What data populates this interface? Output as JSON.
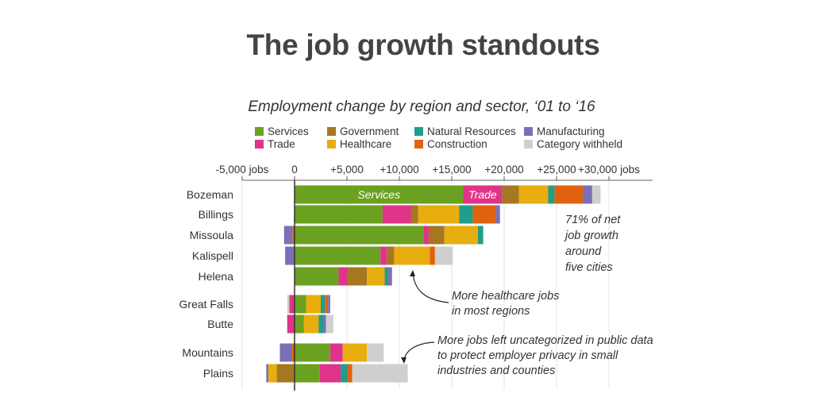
{
  "title": "The job growth standouts",
  "chart_data": {
    "type": "bar",
    "orientation": "horizontal",
    "stacked": true,
    "title": "Employment change by region and sector, ‘01 to ‘16",
    "xlim": [
      -5000,
      33000
    ],
    "ticks": [
      {
        "value": -5000,
        "label": "-5,000 jobs"
      },
      {
        "value": 0,
        "label": "0"
      },
      {
        "value": 5000,
        "label": "+5,000"
      },
      {
        "value": 10000,
        "label": "+10,000"
      },
      {
        "value": 15000,
        "label": "+15,000"
      },
      {
        "value": 20000,
        "label": "+20,000"
      },
      {
        "value": 25000,
        "label": "+25,000"
      },
      {
        "value": 30000,
        "label": "+30,000 jobs"
      }
    ],
    "grid": true,
    "legend_position": "top",
    "sectors": [
      {
        "key": "services",
        "name": "Services",
        "color": "#6aa121"
      },
      {
        "key": "trade",
        "name": "Trade",
        "color": "#e0338a"
      },
      {
        "key": "government",
        "name": "Government",
        "color": "#a57720"
      },
      {
        "key": "healthcare",
        "name": "Healthcare",
        "color": "#e8ad0e"
      },
      {
        "key": "natural",
        "name": "Natural Resources",
        "color": "#1f9e89"
      },
      {
        "key": "construction",
        "name": "Construction",
        "color": "#e0620e"
      },
      {
        "key": "manufacturing",
        "name": "Manufacturing",
        "color": "#7b70b7"
      },
      {
        "key": "withheld",
        "name": "Category withheld",
        "color": "#cfcfcf"
      }
    ],
    "categories": [
      "Bozeman",
      "Billings",
      "Missoula",
      "Kalispell",
      "Helena",
      "Great Falls",
      "Butte",
      "Mountains",
      "Plains"
    ],
    "rows": [
      {
        "region": "Bozeman",
        "positive": {
          "services": 16100,
          "trade": 3700,
          "government": 1600,
          "healthcare": 2800,
          "natural": 600,
          "construction": 2700,
          "manufacturing": 900,
          "withheld": 800
        },
        "negative": {},
        "segment_labels": {
          "services": "Services",
          "trade": "Trade"
        }
      },
      {
        "region": "Billings",
        "positive": {
          "services": 8400,
          "trade": 2700,
          "government": 700,
          "healthcare": 3900,
          "natural": 1300,
          "construction": 2200,
          "manufacturing": 400
        },
        "negative": {}
      },
      {
        "region": "Missoula",
        "positive": {
          "services": 12300,
          "trade": 500,
          "government": 1500,
          "healthcare": 3200,
          "natural": 500
        },
        "negative": {
          "construction": -200,
          "manufacturing": -800
        }
      },
      {
        "region": "Kalispell",
        "positive": {
          "services": 8200,
          "trade": 600,
          "government": 700,
          "healthcare": 3400,
          "construction": 500,
          "withheld": 1700
        },
        "negative": {
          "manufacturing": -900
        }
      },
      {
        "region": "Helena",
        "positive": {
          "services": 4200,
          "trade": 800,
          "government": 1900,
          "healthcare": 1700,
          "natural": 300,
          "manufacturing": 400
        },
        "negative": {}
      },
      {
        "region": "Great Falls",
        "positive": {
          "services": 1100,
          "healthcare": 1400,
          "natural": 400,
          "construction": 300,
          "manufacturing": 200
        },
        "negative": {
          "trade": -500,
          "withheld": -200
        }
      },
      {
        "region": "Butte",
        "positive": {
          "services": 900,
          "healthcare": 1400,
          "natural": 500,
          "manufacturing": 200,
          "withheld": 700
        },
        "negative": {
          "trade": -700
        }
      },
      {
        "region": "Mountains",
        "positive": {
          "services": 3400,
          "trade": 1200,
          "healthcare": 2300,
          "withheld": 1600
        },
        "negative": {
          "construction": -300,
          "manufacturing": -1100
        }
      },
      {
        "region": "Plains",
        "positive": {
          "services": 2400,
          "trade": 2000,
          "natural": 600,
          "construction": 500,
          "withheld": 5300
        },
        "negative": {
          "government": -1700,
          "healthcare": -800,
          "manufacturing": -200
        }
      }
    ],
    "annotations": [
      {
        "lines": [
          "71% of net",
          "job growth",
          "around",
          "five cities"
        ]
      },
      {
        "lines": [
          "More healthcare jobs",
          "in most regions"
        ]
      },
      {
        "lines": [
          "More jobs left uncategorized in public data",
          "to protect employer privacy in small",
          "industries and counties"
        ]
      }
    ]
  }
}
